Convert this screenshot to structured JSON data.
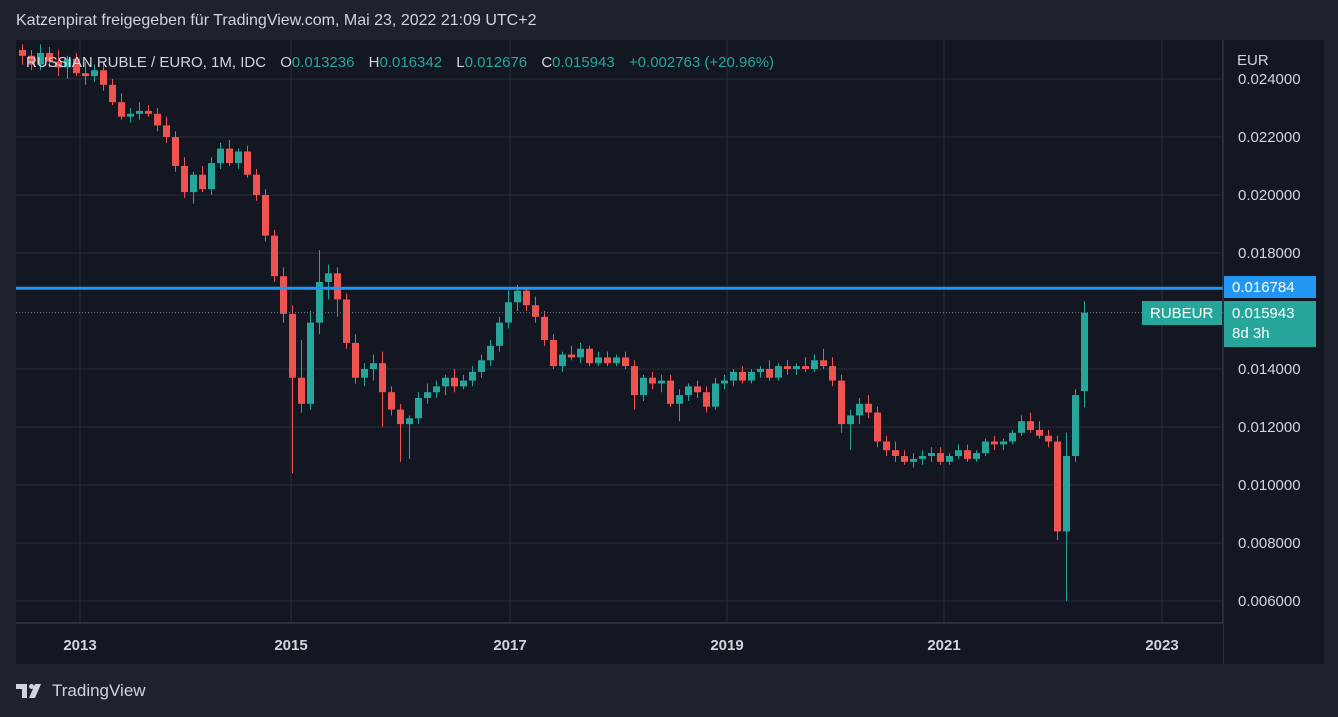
{
  "header": {
    "caption": "Katzenpirat freigegeben für TradingView.com, Mai 23, 2022 21:09 UTC+2"
  },
  "legend": {
    "symbol": "RUSSIAN RUBLE / EURO, 1M, IDC",
    "open_label": "O",
    "open": "0.013236",
    "high_label": "H",
    "high": "0.016342",
    "low_label": "L",
    "low": "0.012676",
    "close_label": "C",
    "close": "0.015943",
    "change": "+0.002763 (+20.96%)"
  },
  "axis": {
    "unit": "EUR",
    "price_ticks": [
      "0.024000",
      "0.022000",
      "0.020000",
      "0.018000",
      "0.014000",
      "0.012000",
      "0.010000",
      "0.008000",
      "0.006000"
    ],
    "year_ticks": [
      "2013",
      "2015",
      "2017",
      "2019",
      "2021",
      "2023"
    ]
  },
  "badges": {
    "hline_price": "0.016784",
    "symbol_tag": "RUBEUR",
    "last_price": "0.015943",
    "countdown": "8d 3h"
  },
  "footer": {
    "brand": "TradingView"
  },
  "colors": {
    "up": "#26a69a",
    "down": "#ef5350",
    "hline": "#2196f3",
    "background": "#131722",
    "grid": "#2a2e39"
  },
  "chart_data": {
    "type": "candlestick",
    "title": "RUSSIAN RUBLE / EURO, 1M, IDC",
    "ylabel": "EUR",
    "ylim": [
      0.0055,
      0.0245
    ],
    "x_start": "2012-07",
    "interval": "1M",
    "horizontal_line": 0.016784,
    "last_price": 0.015943,
    "grid": true,
    "candles": [
      [
        0.025,
        0.0252,
        0.0245,
        0.0248
      ],
      [
        0.0248,
        0.025,
        0.0243,
        0.0245
      ],
      [
        0.0245,
        0.0252,
        0.0243,
        0.0249
      ],
      [
        0.0249,
        0.0251,
        0.0244,
        0.0246
      ],
      [
        0.0246,
        0.025,
        0.0241,
        0.0244
      ],
      [
        0.0244,
        0.0248,
        0.024,
        0.0247
      ],
      [
        0.0247,
        0.0249,
        0.0241,
        0.0242
      ],
      [
        0.0242,
        0.0246,
        0.0238,
        0.0241
      ],
      [
        0.0241,
        0.0245,
        0.0239,
        0.0243
      ],
      [
        0.0243,
        0.0246,
        0.0236,
        0.0238
      ],
      [
        0.0238,
        0.024,
        0.0231,
        0.0232
      ],
      [
        0.0232,
        0.0235,
        0.0226,
        0.0227
      ],
      [
        0.0227,
        0.023,
        0.0225,
        0.0228
      ],
      [
        0.0228,
        0.0232,
        0.0226,
        0.0229
      ],
      [
        0.0229,
        0.0231,
        0.0227,
        0.0228
      ],
      [
        0.0228,
        0.023,
        0.0222,
        0.0224
      ],
      [
        0.0224,
        0.0227,
        0.0218,
        0.022
      ],
      [
        0.022,
        0.0222,
        0.0208,
        0.021
      ],
      [
        0.021,
        0.0213,
        0.0199,
        0.0201
      ],
      [
        0.0201,
        0.0208,
        0.0197,
        0.0207
      ],
      [
        0.0207,
        0.021,
        0.0201,
        0.0202
      ],
      [
        0.0202,
        0.0213,
        0.02,
        0.0211
      ],
      [
        0.0211,
        0.0218,
        0.0209,
        0.0216
      ],
      [
        0.0216,
        0.0219,
        0.021,
        0.0211
      ],
      [
        0.0211,
        0.0216,
        0.0209,
        0.0215
      ],
      [
        0.0215,
        0.0217,
        0.0206,
        0.0207
      ],
      [
        0.0207,
        0.0209,
        0.0198,
        0.02
      ],
      [
        0.02,
        0.0202,
        0.0184,
        0.0186
      ],
      [
        0.0186,
        0.0188,
        0.017,
        0.0172
      ],
      [
        0.0172,
        0.0175,
        0.0156,
        0.0159
      ],
      [
        0.0159,
        0.0162,
        0.0104,
        0.0137
      ],
      [
        0.0137,
        0.015,
        0.0125,
        0.0128
      ],
      [
        0.0128,
        0.016,
        0.0126,
        0.0156
      ],
      [
        0.0156,
        0.0181,
        0.0152,
        0.017
      ],
      [
        0.017,
        0.0176,
        0.0164,
        0.0173
      ],
      [
        0.0173,
        0.0175,
        0.0158,
        0.0164
      ],
      [
        0.0164,
        0.0166,
        0.0147,
        0.0149
      ],
      [
        0.0149,
        0.0152,
        0.0135,
        0.0137
      ],
      [
        0.0137,
        0.0142,
        0.0134,
        0.014
      ],
      [
        0.014,
        0.0145,
        0.0136,
        0.0142
      ],
      [
        0.0142,
        0.0146,
        0.012,
        0.0132
      ],
      [
        0.0132,
        0.0134,
        0.0124,
        0.0126
      ],
      [
        0.0126,
        0.0128,
        0.0108,
        0.0121
      ],
      [
        0.0121,
        0.0124,
        0.0109,
        0.0123
      ],
      [
        0.0123,
        0.0132,
        0.0121,
        0.013
      ],
      [
        0.013,
        0.0135,
        0.0128,
        0.0132
      ],
      [
        0.0132,
        0.0136,
        0.013,
        0.0134
      ],
      [
        0.0134,
        0.0138,
        0.0131,
        0.0137
      ],
      [
        0.0137,
        0.014,
        0.0132,
        0.0134
      ],
      [
        0.0134,
        0.0138,
        0.0133,
        0.0136
      ],
      [
        0.0136,
        0.0141,
        0.0134,
        0.0139
      ],
      [
        0.0139,
        0.0145,
        0.0137,
        0.0143
      ],
      [
        0.0143,
        0.015,
        0.0141,
        0.0148
      ],
      [
        0.0148,
        0.0158,
        0.0146,
        0.0156
      ],
      [
        0.0156,
        0.0167,
        0.0154,
        0.0163
      ],
      [
        0.0163,
        0.0169,
        0.016,
        0.0167
      ],
      [
        0.0167,
        0.0168,
        0.016,
        0.0162
      ],
      [
        0.0162,
        0.0165,
        0.0156,
        0.0158
      ],
      [
        0.0158,
        0.016,
        0.0148,
        0.015
      ],
      [
        0.015,
        0.0152,
        0.014,
        0.0141
      ],
      [
        0.0141,
        0.0146,
        0.0139,
        0.0145
      ],
      [
        0.0145,
        0.0148,
        0.0143,
        0.0144
      ],
      [
        0.0144,
        0.0149,
        0.0142,
        0.0147
      ],
      [
        0.0147,
        0.0148,
        0.0141,
        0.0142
      ],
      [
        0.0142,
        0.0146,
        0.0141,
        0.0144
      ],
      [
        0.0144,
        0.0146,
        0.0141,
        0.0142
      ],
      [
        0.0142,
        0.0145,
        0.0141,
        0.0144
      ],
      [
        0.0144,
        0.0146,
        0.014,
        0.0141
      ],
      [
        0.0141,
        0.0143,
        0.0126,
        0.0131
      ],
      [
        0.0131,
        0.0138,
        0.0129,
        0.0137
      ],
      [
        0.0137,
        0.0139,
        0.0133,
        0.0135
      ],
      [
        0.0135,
        0.0138,
        0.0132,
        0.0136
      ],
      [
        0.0136,
        0.0138,
        0.0127,
        0.0128
      ],
      [
        0.0128,
        0.0133,
        0.0122,
        0.0131
      ],
      [
        0.0131,
        0.0135,
        0.0129,
        0.0134
      ],
      [
        0.0134,
        0.0136,
        0.013,
        0.0132
      ],
      [
        0.0132,
        0.0134,
        0.0125,
        0.0127
      ],
      [
        0.0127,
        0.0137,
        0.0126,
        0.0135
      ],
      [
        0.0135,
        0.0138,
        0.0133,
        0.0136
      ],
      [
        0.0136,
        0.014,
        0.0134,
        0.0139
      ],
      [
        0.0139,
        0.0141,
        0.0135,
        0.0136
      ],
      [
        0.0136,
        0.014,
        0.0135,
        0.0139
      ],
      [
        0.0139,
        0.0141,
        0.0137,
        0.014
      ],
      [
        0.014,
        0.0143,
        0.0136,
        0.0137
      ],
      [
        0.0137,
        0.0142,
        0.0136,
        0.0141
      ],
      [
        0.0141,
        0.0143,
        0.0138,
        0.014
      ],
      [
        0.014,
        0.0142,
        0.0138,
        0.0141
      ],
      [
        0.0141,
        0.0144,
        0.0139,
        0.014
      ],
      [
        0.014,
        0.0145,
        0.0139,
        0.0143
      ],
      [
        0.0143,
        0.0147,
        0.014,
        0.0141
      ],
      [
        0.0141,
        0.0144,
        0.0134,
        0.0136
      ],
      [
        0.0136,
        0.0138,
        0.0118,
        0.0121
      ],
      [
        0.0121,
        0.0126,
        0.0112,
        0.0124
      ],
      [
        0.0124,
        0.013,
        0.0121,
        0.0128
      ],
      [
        0.0128,
        0.0131,
        0.0123,
        0.0125
      ],
      [
        0.0125,
        0.0127,
        0.0113,
        0.0115
      ],
      [
        0.0115,
        0.0117,
        0.011,
        0.0112
      ],
      [
        0.0112,
        0.0115,
        0.0108,
        0.011
      ],
      [
        0.011,
        0.0112,
        0.0107,
        0.0108
      ],
      [
        0.0108,
        0.0111,
        0.0106,
        0.0109
      ],
      [
        0.0109,
        0.0112,
        0.0107,
        0.011
      ],
      [
        0.011,
        0.0113,
        0.0108,
        0.0111
      ],
      [
        0.0111,
        0.0113,
        0.0107,
        0.0108
      ],
      [
        0.0108,
        0.0111,
        0.0107,
        0.011
      ],
      [
        0.011,
        0.0114,
        0.0109,
        0.0112
      ],
      [
        0.0112,
        0.0114,
        0.0108,
        0.0109
      ],
      [
        0.0109,
        0.0112,
        0.0108,
        0.0111
      ],
      [
        0.0111,
        0.0116,
        0.011,
        0.0115
      ],
      [
        0.0115,
        0.0117,
        0.0112,
        0.0114
      ],
      [
        0.0114,
        0.0116,
        0.0112,
        0.0115
      ],
      [
        0.0115,
        0.0119,
        0.0114,
        0.0118
      ],
      [
        0.0118,
        0.0124,
        0.0117,
        0.0122
      ],
      [
        0.0122,
        0.0125,
        0.0118,
        0.0119
      ],
      [
        0.0119,
        0.0122,
        0.0116,
        0.0117
      ],
      [
        0.0117,
        0.0119,
        0.0113,
        0.0115
      ],
      [
        0.0115,
        0.0117,
        0.0081,
        0.0084
      ],
      [
        0.0084,
        0.0118,
        0.006,
        0.011
      ],
      [
        0.011,
        0.0133,
        0.0108,
        0.0131
      ],
      [
        0.013236,
        0.016342,
        0.012676,
        0.015943
      ]
    ]
  }
}
